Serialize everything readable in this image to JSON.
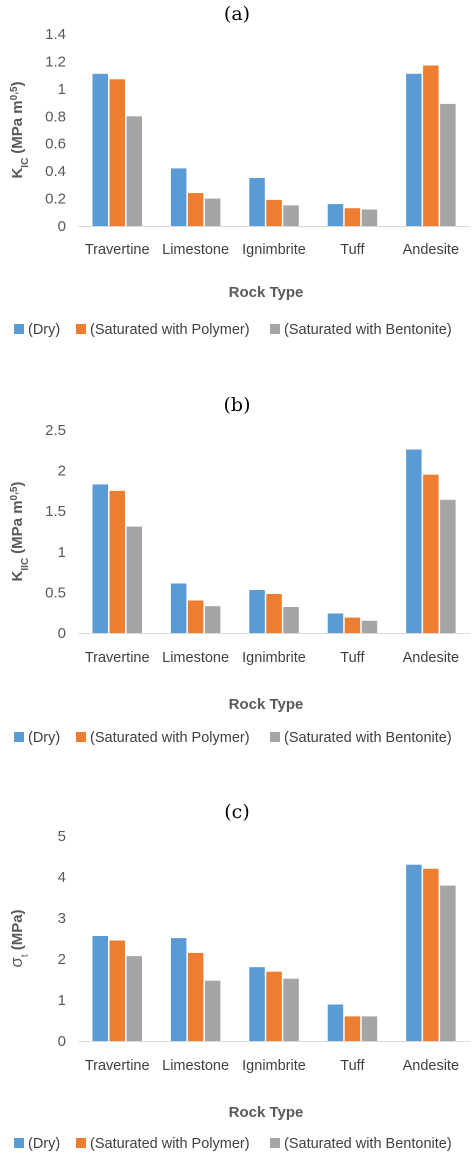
{
  "colors": {
    "dry": "#5b9bd5",
    "polymer": "#ed7d31",
    "bentonite": "#a5a5a5",
    "axis": "#d9d9d9"
  },
  "legend_entries": [
    "(Dry)",
    "(Saturated with Polymer)",
    "(Saturated with Bentonite)"
  ],
  "chart_data": [
    {
      "type": "bar",
      "panel_label": "(a)",
      "categories": [
        "Travertine",
        "Limestone",
        "Ignimbrite",
        "Tuff",
        "Andesite"
      ],
      "series": [
        {
          "name": "(Dry)",
          "values": [
            1.11,
            0.42,
            0.35,
            0.16,
            1.11
          ]
        },
        {
          "name": "(Saturated with Polymer)",
          "values": [
            1.07,
            0.24,
            0.19,
            0.13,
            1.17
          ]
        },
        {
          "name": "(Saturated with Bentonite)",
          "values": [
            0.8,
            0.2,
            0.15,
            0.12,
            0.89
          ]
        }
      ],
      "xlabel": "Rock Type",
      "ylabel_base": "K",
      "ylabel_sub": "IC",
      "ylabel_unit": "(MPa m",
      "ylabel_sup": "0,5",
      "ylabel_close": ")",
      "ylim": [
        0,
        1.4
      ],
      "yticks": [
        "0",
        "0.2",
        "0.4",
        "0.6",
        "0.8",
        "1",
        "1.2",
        "1.4"
      ],
      "legend_position": "bottom"
    },
    {
      "type": "bar",
      "panel_label": "(b)",
      "categories": [
        "Travertine",
        "Limestone",
        "Ignimbrite",
        "Tuff",
        "Andesite"
      ],
      "series": [
        {
          "name": "(Dry)",
          "values": [
            1.83,
            0.61,
            0.53,
            0.24,
            2.26
          ]
        },
        {
          "name": "(Saturated with Polymer)",
          "values": [
            1.75,
            0.4,
            0.48,
            0.19,
            1.95
          ]
        },
        {
          "name": "(Saturated with Bentonite)",
          "values": [
            1.31,
            0.33,
            0.32,
            0.15,
            1.64
          ]
        }
      ],
      "xlabel": "Rock Type",
      "ylabel_base": "K",
      "ylabel_sub": "IIC",
      "ylabel_unit": "(MPa m",
      "ylabel_sup": "0,5",
      "ylabel_close": ")",
      "ylim": [
        0,
        2.5
      ],
      "yticks": [
        "0",
        "0.5",
        "1",
        "1.5",
        "2",
        "2.5"
      ],
      "legend_position": "bottom"
    },
    {
      "type": "bar",
      "panel_label": "(c)",
      "categories": [
        "Travertine",
        "Limestone",
        "Ignimbrite",
        "Tuff",
        "Andesite"
      ],
      "series": [
        {
          "name": "(Dry)",
          "values": [
            2.56,
            2.51,
            1.8,
            0.89,
            4.3
          ]
        },
        {
          "name": "(Saturated with Polymer)",
          "values": [
            2.45,
            2.15,
            1.69,
            0.6,
            4.2
          ]
        },
        {
          "name": "(Saturated with Bentonite)",
          "values": [
            2.07,
            1.47,
            1.52,
            0.6,
            3.79
          ]
        }
      ],
      "xlabel": "Rock Type",
      "ylabel_base": "σ",
      "ylabel_sub": "t",
      "ylabel_unit": "(MPa)",
      "ylabel_sup": "",
      "ylabel_close": "",
      "ylim": [
        0,
        5
      ],
      "yticks": [
        "0",
        "1",
        "2",
        "3",
        "4",
        "5"
      ],
      "legend_position": "bottom"
    }
  ]
}
